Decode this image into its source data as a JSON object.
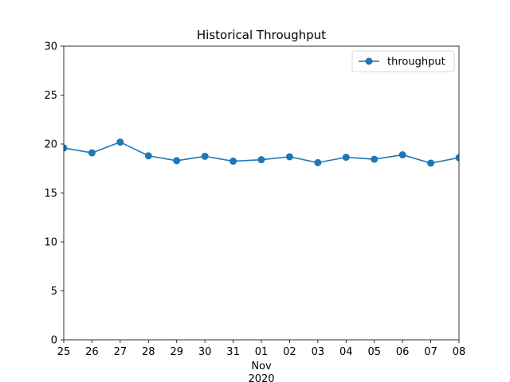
{
  "chart_data": {
    "type": "line",
    "title": "Historical Throughput",
    "xlabel": "",
    "ylabel": "",
    "x": [
      "2020-10-25",
      "2020-10-26",
      "2020-10-27",
      "2020-10-28",
      "2020-10-29",
      "2020-10-30",
      "2020-10-31",
      "2020-11-01",
      "2020-11-02",
      "2020-11-03",
      "2020-11-04",
      "2020-11-05",
      "2020-11-06",
      "2020-11-07",
      "2020-11-08"
    ],
    "x_tick_labels": [
      "25",
      "26",
      "27",
      "28",
      "29",
      "30",
      "31",
      "01",
      "02",
      "03",
      "04",
      "05",
      "06",
      "07",
      "08"
    ],
    "x_secondary_label": [
      "Nov",
      "2020"
    ],
    "ylim": [
      0,
      30
    ],
    "y_ticks": [
      0,
      5,
      10,
      15,
      20,
      25,
      30
    ],
    "grid": false,
    "legend_position": "upper right",
    "series": [
      {
        "name": "throughput",
        "color": "#1f77b4",
        "marker": "circle",
        "values": [
          19.6,
          19.1,
          20.2,
          18.8,
          18.3,
          18.75,
          18.25,
          18.4,
          18.7,
          18.1,
          18.65,
          18.45,
          18.9,
          18.05,
          18.6
        ]
      }
    ]
  }
}
